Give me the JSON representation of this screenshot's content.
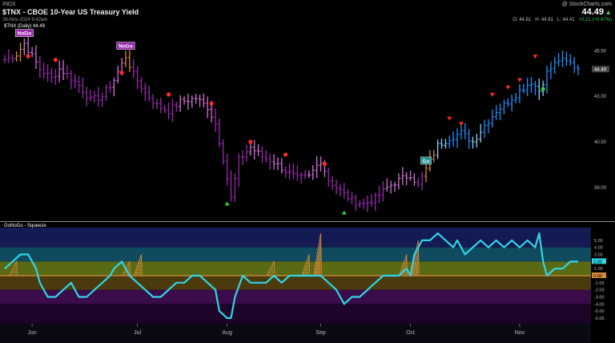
{
  "header": {
    "exchange": "INDX",
    "title": "$TNX - CBOE 10-Year US Treasury Yield",
    "timestamp": "26-Nov-2024 9:42am",
    "brand": "@ StockCharts.com",
    "last": "44.49",
    "open": "O: 44.81",
    "high": "H: 44.91",
    "low": "L: 44.41",
    "change": "+0.21 (+0.47%)"
  },
  "colors": {
    "background": "#000000",
    "nogo_purple": "#9b27b0",
    "nogo_pink": "#d36fd8",
    "go_blue": "#1e90ff",
    "go_light": "#87cefa",
    "amber": "#d98a3a",
    "red_dot": "#ff2a2a",
    "green_triangle": "#2ecc40",
    "oscillator": "#30d5e8",
    "zero_line": "#d98a3a"
  },
  "chart_data": [
    {
      "type": "line",
      "name": "price",
      "legend": "$TNX (Daily) 44.49",
      "ylim": [
        36.5,
        46.7
      ],
      "y_ticks": [
        "45.50",
        "43.00",
        "40.50",
        "38.00"
      ],
      "x_labels": [
        {
          "label": "Jun",
          "day": 7
        },
        {
          "label": "Jul",
          "day": 34
        },
        {
          "label": "Aug",
          "day": 57
        },
        {
          "label": "Sep",
          "day": 81
        },
        {
          "label": "Oct",
          "day": 104
        },
        {
          "label": "Nov",
          "day": 132
        }
      ],
      "n_days": 148,
      "anchors": [
        [
          0,
          45.0,
          "purple"
        ],
        [
          3,
          45.3,
          "amber"
        ],
        [
          5,
          45.9,
          "pink"
        ],
        [
          7,
          45.2,
          "pink"
        ],
        [
          9,
          44.5,
          "purple"
        ],
        [
          12,
          44.0,
          "purple"
        ],
        [
          14,
          44.5,
          "pink"
        ],
        [
          16,
          44.2,
          "purple"
        ],
        [
          19,
          43.6,
          "purple"
        ],
        [
          22,
          42.8,
          "purple"
        ],
        [
          25,
          43.0,
          "purple"
        ],
        [
          28,
          43.9,
          "pink"
        ],
        [
          31,
          45.2,
          "amber"
        ],
        [
          33,
          44.2,
          "purple"
        ],
        [
          36,
          43.2,
          "purple"
        ],
        [
          39,
          42.5,
          "purple"
        ],
        [
          42,
          42.2,
          "purple"
        ],
        [
          45,
          42.7,
          "pink"
        ],
        [
          49,
          42.9,
          "pink"
        ],
        [
          52,
          42.4,
          "pink"
        ],
        [
          54,
          41.5,
          "purple"
        ],
        [
          56,
          39.6,
          "purple"
        ],
        [
          58,
          37.4,
          "purple"
        ],
        [
          60,
          39.5,
          "purple"
        ],
        [
          63,
          40.2,
          "pink"
        ],
        [
          66,
          39.7,
          "purple"
        ],
        [
          69,
          39.4,
          "pink"
        ],
        [
          72,
          38.9,
          "purple"
        ],
        [
          75,
          38.5,
          "purple"
        ],
        [
          78,
          38.6,
          "pink"
        ],
        [
          81,
          39.5,
          "pink"
        ],
        [
          83,
          38.4,
          "purple"
        ],
        [
          86,
          37.8,
          "purple"
        ],
        [
          89,
          37.3,
          "purple"
        ],
        [
          92,
          37.1,
          "purple"
        ],
        [
          95,
          37.4,
          "purple"
        ],
        [
          98,
          38.0,
          "pink"
        ],
        [
          101,
          38.4,
          "pink"
        ],
        [
          104,
          38.7,
          "pink"
        ],
        [
          106,
          38.1,
          "purple"
        ],
        [
          108,
          39.0,
          "amber"
        ],
        [
          111,
          40.3,
          "light"
        ],
        [
          114,
          40.7,
          "blue"
        ],
        [
          117,
          41.0,
          "blue"
        ],
        [
          120,
          40.5,
          "light"
        ],
        [
          123,
          41.4,
          "blue"
        ],
        [
          126,
          42.2,
          "blue"
        ],
        [
          129,
          42.7,
          "blue"
        ],
        [
          132,
          43.3,
          "blue"
        ],
        [
          135,
          43.8,
          "blue"
        ],
        [
          137,
          43.3,
          "light"
        ],
        [
          139,
          44.3,
          "blue"
        ],
        [
          142,
          45.0,
          "blue"
        ],
        [
          145,
          44.8,
          "blue"
        ],
        [
          147,
          44.49,
          "blue"
        ]
      ],
      "red_dots": [
        {
          "day": 6,
          "value": 45.2
        },
        {
          "day": 13,
          "value": 45.0
        },
        {
          "day": 30,
          "value": 44.3
        },
        {
          "day": 42,
          "value": 43.1
        },
        {
          "day": 53,
          "value": 42.6
        },
        {
          "day": 63,
          "value": 40.5
        },
        {
          "day": 72,
          "value": 39.8
        },
        {
          "day": 82,
          "value": 39.3
        }
      ],
      "red_triangles": [
        {
          "day": 114,
          "value": 41.8
        },
        {
          "day": 117,
          "value": 41.5
        },
        {
          "day": 125,
          "value": 43.1
        },
        {
          "day": 129,
          "value": 43.5
        },
        {
          "day": 132,
          "value": 43.9
        },
        {
          "day": 136,
          "value": 45.2
        }
      ],
      "green_triangles": [
        {
          "day": 57,
          "value": 37.1
        },
        {
          "day": 87,
          "value": 36.6
        }
      ],
      "green_dots": [
        {
          "day": 138,
          "value": 43.4
        }
      ],
      "labels": [
        {
          "text": "NoGo",
          "day": 5,
          "value": 46.45,
          "color": "#9b27b0"
        },
        {
          "text": "NoGo",
          "day": 31,
          "value": 45.75,
          "color": "#9b27b0"
        },
        {
          "text": "Go",
          "day": 108,
          "value": 39.45,
          "color": "#1a8f8f"
        }
      ]
    },
    {
      "type": "line",
      "name": "oscillator",
      "legend": "GoNoGo - Squeeze",
      "ylim": [
        -6.8,
        6.8
      ],
      "y_ticks": [
        "5.00",
        "4.00",
        "3.00",
        "2.00",
        "1.00",
        "0.00",
        "-1.00",
        "-2.00",
        "-3.00",
        "-4.00",
        "-5.00",
        "-6.00"
      ],
      "last_value": "2.00",
      "zero_label": "0.00",
      "values": [
        [
          0,
          1
        ],
        [
          2,
          2
        ],
        [
          4,
          3
        ],
        [
          6,
          3
        ],
        [
          8,
          1
        ],
        [
          9,
          -1
        ],
        [
          11,
          -3
        ],
        [
          13,
          -3
        ],
        [
          15,
          -2
        ],
        [
          17,
          -1
        ],
        [
          19,
          -3
        ],
        [
          21,
          -3
        ],
        [
          23,
          -2
        ],
        [
          25,
          -1
        ],
        [
          27,
          0
        ],
        [
          28,
          1
        ],
        [
          30,
          2
        ],
        [
          32,
          0
        ],
        [
          34,
          -1
        ],
        [
          36,
          -2
        ],
        [
          38,
          -3
        ],
        [
          40,
          -3
        ],
        [
          42,
          -2
        ],
        [
          44,
          -1
        ],
        [
          46,
          -1
        ],
        [
          48,
          0
        ],
        [
          50,
          0
        ],
        [
          52,
          -1
        ],
        [
          54,
          -2
        ],
        [
          55,
          -5
        ],
        [
          57,
          -6
        ],
        [
          58,
          -6
        ],
        [
          59,
          -3
        ],
        [
          61,
          0
        ],
        [
          63,
          -1
        ],
        [
          65,
          -1
        ],
        [
          67,
          -1
        ],
        [
          69,
          0
        ],
        [
          71,
          -1
        ],
        [
          73,
          0
        ],
        [
          75,
          0
        ],
        [
          77,
          0
        ],
        [
          79,
          0
        ],
        [
          81,
          0
        ],
        [
          83,
          -1
        ],
        [
          85,
          -2
        ],
        [
          87,
          -4
        ],
        [
          89,
          -3
        ],
        [
          91,
          -3
        ],
        [
          93,
          -2
        ],
        [
          95,
          -1
        ],
        [
          97,
          0
        ],
        [
          99,
          0
        ],
        [
          101,
          0
        ],
        [
          103,
          1
        ],
        [
          104,
          0
        ],
        [
          105,
          3
        ],
        [
          107,
          5
        ],
        [
          109,
          5
        ],
        [
          111,
          6
        ],
        [
          113,
          5
        ],
        [
          115,
          4
        ],
        [
          116,
          5
        ],
        [
          118,
          3
        ],
        [
          120,
          4
        ],
        [
          122,
          5
        ],
        [
          124,
          4
        ],
        [
          126,
          5
        ],
        [
          128,
          4
        ],
        [
          130,
          5
        ],
        [
          132,
          4
        ],
        [
          134,
          5
        ],
        [
          136,
          4
        ],
        [
          137,
          6
        ],
        [
          138,
          2
        ],
        [
          139,
          0
        ],
        [
          141,
          1
        ],
        [
          143,
          1
        ],
        [
          145,
          2
        ],
        [
          147,
          2
        ]
      ],
      "squeeze_spikes": [
        {
          "day": 3,
          "top": 2
        },
        {
          "day": 32,
          "top": 2
        },
        {
          "day": 35,
          "top": 3
        },
        {
          "day": 69,
          "top": 2
        },
        {
          "day": 78,
          "top": 3
        },
        {
          "day": 81,
          "top": 6
        },
        {
          "day": 103,
          "top": 3
        },
        {
          "day": 106,
          "top": 5
        }
      ]
    }
  ]
}
